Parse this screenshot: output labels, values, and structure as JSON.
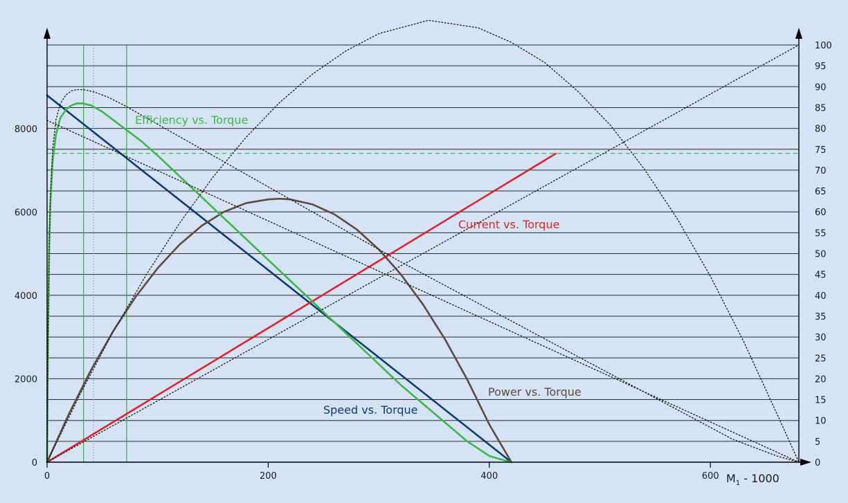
{
  "colors": {
    "background": "#d6e3f4",
    "speed": "#0d3a73",
    "efficiency": "#3db54a",
    "current": "#d9262e",
    "power": "#5b4a3e",
    "reference": "#222222"
  },
  "chart_data": {
    "type": "line",
    "title": "",
    "xlabel": "M1 - 1000",
    "xlabel_main": "M",
    "xlabel_sub": "1",
    "xlabel_rest": " - 1000",
    "xlim": [
      0,
      680
    ],
    "ylim_left": [
      0,
      10000
    ],
    "ylim_right": [
      0,
      100
    ],
    "x_ticks": [
      "0",
      "200",
      "400",
      "600"
    ],
    "y_left_ticks": [
      "0",
      "2000",
      "4000",
      "6000",
      "8000"
    ],
    "y_right_ticks": [
      "0",
      "5",
      "10",
      "15",
      "20",
      "25",
      "30",
      "35",
      "40",
      "45",
      "50",
      "55",
      "60",
      "65",
      "70",
      "75",
      "80",
      "85",
      "90",
      "95",
      "100"
    ],
    "grid": "horizontal",
    "series": [
      {
        "name": "Speed vs. Torque",
        "axis": "left",
        "style": "solid",
        "x": [
          0,
          420
        ],
        "y": [
          8800,
          0
        ]
      },
      {
        "name": "Current vs. Torque",
        "axis": "left",
        "style": "solid",
        "x": [
          0,
          460
        ],
        "y": [
          0,
          7400
        ]
      },
      {
        "name": "Power vs. Torque",
        "axis": "left",
        "style": "solid",
        "x": [
          0,
          20,
          40,
          60,
          80,
          100,
          120,
          140,
          160,
          180,
          200,
          210,
          220,
          240,
          260,
          280,
          300,
          320,
          340,
          360,
          380,
          400,
          420
        ],
        "y": [
          0,
          1171,
          2222,
          3152,
          3963,
          4653,
          5224,
          5674,
          6005,
          6215,
          6304,
          6320,
          6304,
          6185,
          5945,
          5585,
          5105,
          4505,
          3785,
          2945,
          1985,
          905,
          0
        ]
      },
      {
        "name": "Efficiency vs. Torque",
        "axis": "right",
        "style": "solid",
        "x": [
          0,
          0.5,
          1,
          2,
          3,
          5,
          8,
          12,
          17,
          22,
          27,
          32,
          40,
          50,
          60,
          70,
          85,
          100,
          120,
          140,
          160,
          180,
          200,
          220,
          240,
          260,
          280,
          300,
          320,
          340,
          360,
          380,
          400,
          410,
          420
        ],
        "y": [
          0,
          18,
          33,
          52,
          62,
          72,
          78.5,
          82.5,
          84.5,
          85.5,
          86,
          86,
          85.5,
          84,
          82,
          80,
          77,
          73.5,
          68.5,
          63.5,
          58.5,
          53.5,
          48.5,
          43.5,
          38.5,
          33.5,
          28.5,
          23.5,
          18.5,
          14,
          9.5,
          5,
          1.5,
          0.7,
          0
        ]
      },
      {
        "name": "",
        "axis": "left",
        "style": "dotted",
        "x": [
          0,
          680
        ],
        "y": [
          8200,
          0
        ]
      },
      {
        "name": "",
        "axis": "right",
        "style": "dotted",
        "x": [
          0,
          680
        ],
        "y": [
          0,
          100
        ]
      },
      {
        "name": "",
        "axis": "left",
        "style": "dotted",
        "x": [
          0,
          30,
          60,
          90,
          120,
          150,
          180,
          210,
          240,
          270,
          300,
          345,
          390,
          420,
          450,
          480,
          510,
          540,
          570,
          600,
          630,
          660,
          680
        ],
        "y": [
          0,
          1638,
          3141,
          4508,
          5739,
          6835,
          7795,
          8619,
          9308,
          9861,
          10279,
          10600,
          10420,
          10070,
          9590,
          8900,
          8070,
          7040,
          5840,
          4460,
          2900,
          1170,
          0
        ]
      },
      {
        "name": "",
        "axis": "right",
        "style": "dotted",
        "x": [
          0,
          0.5,
          1,
          2,
          3,
          5,
          8,
          12,
          17,
          22,
          27,
          33,
          42,
          55,
          70,
          90,
          120,
          160,
          200,
          260,
          320,
          380,
          440,
          500,
          560,
          620,
          660,
          680
        ],
        "y": [
          0,
          19,
          34,
          54,
          64,
          75,
          82,
          86,
          88,
          89,
          89.3,
          89.3,
          88.8,
          87.5,
          85.5,
          82.5,
          78,
          72,
          66,
          57,
          48,
          39.5,
          31,
          22.5,
          14,
          5.5,
          1.5,
          0
        ]
      }
    ],
    "reference_lines": [
      {
        "axis": "right",
        "y": 74,
        "style": "dashed",
        "color": "efficiency"
      }
    ],
    "vertical_markers": [
      {
        "x": 33,
        "color": "efficiency"
      },
      {
        "x": 42,
        "color": "dotted"
      },
      {
        "x": 72,
        "color": "efficiency"
      }
    ],
    "annotations": [
      {
        "text": "Efficiency vs. Torque",
        "series": "efficiency"
      },
      {
        "text": "Current vs. Torque",
        "series": "current"
      },
      {
        "text": "Power vs. Torque",
        "series": "power"
      },
      {
        "text": "Speed vs. Torque",
        "series": "speed"
      }
    ]
  }
}
